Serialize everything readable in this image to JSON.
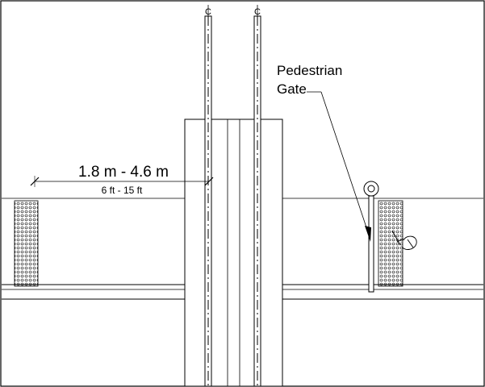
{
  "labels": {
    "pedestrian_gate_line1": "Pedestrian",
    "pedestrian_gate_line2": "Gate",
    "dimension_metric": "1.8 m - 4.6 m",
    "dimension_imperial": "6 ft - 15 ft",
    "centerline_left": "C",
    "centerline_right": "C"
  },
  "colors": {
    "line": "#000000",
    "background": "#ffffff"
  }
}
